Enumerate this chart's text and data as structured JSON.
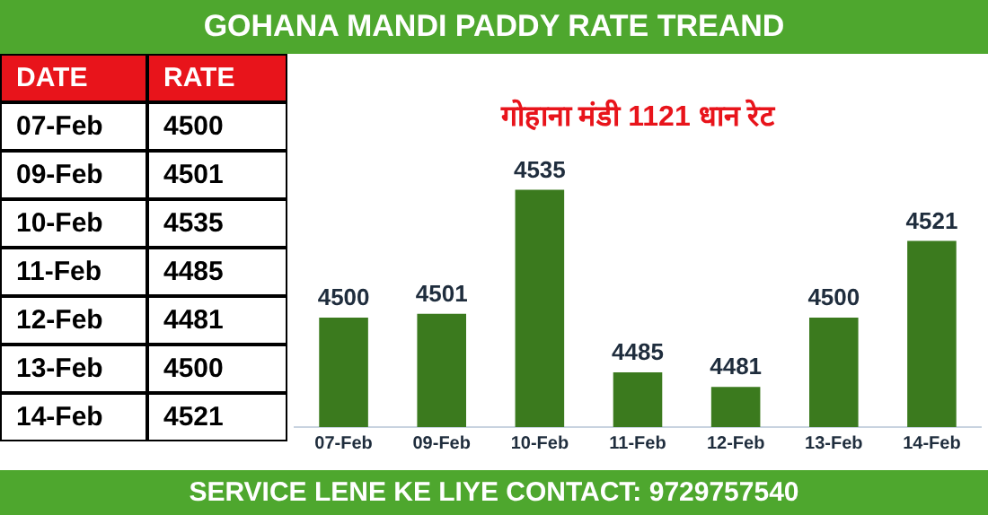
{
  "chart_data": [
    {
      "type": "bar",
      "title": "GOHANA MANDI PADDY RATE TREAND",
      "subtitle": "गोहाना मंडी 1121 धान रेट",
      "categories": [
        "07-Feb",
        "09-Feb",
        "10-Feb",
        "11-Feb",
        "12-Feb",
        "13-Feb",
        "14-Feb"
      ],
      "values": [
        4500,
        4501,
        4535,
        4485,
        4481,
        4500,
        4521
      ],
      "color": "#3b7a1e",
      "data_labels": true,
      "annotations": [
        "SERVICE LENE KE LIYE CONTACT: 9729757540"
      ]
    },
    {
      "type": "other",
      "categories": [
        "07-Feb",
        "09-Feb",
        "10-Feb",
        "11-Feb",
        "12-Feb",
        "13-Feb",
        "14-Feb"
      ],
      "values": [
        4500,
        4501,
        4535,
        4485,
        4481,
        4500,
        4521
      ],
      "data_labels": true,
      "annotations": [
        "DATE",
        "RATE"
      ]
    }
  ]
}
